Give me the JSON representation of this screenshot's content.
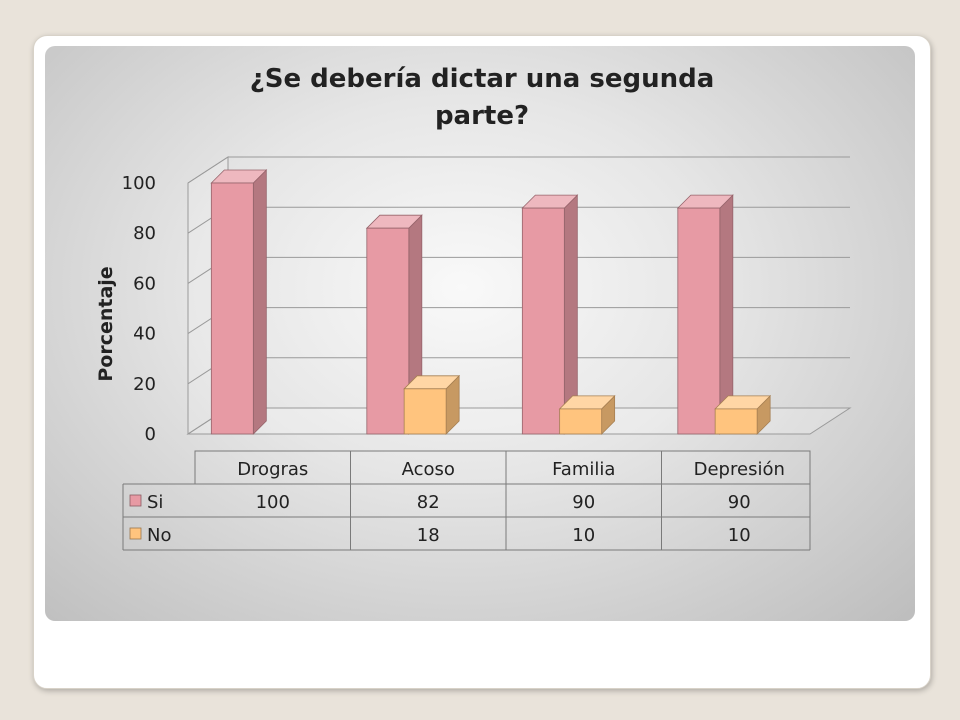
{
  "chart_data": {
    "type": "bar",
    "title": "¿Se debería dictar  una segunda parte?",
    "title_lines": [
      "¿Se debería dictar  una segunda",
      "parte?"
    ],
    "ylabel": "Porcentaje",
    "xlabel": "",
    "categories": [
      "Drogras",
      "Acoso",
      "Familia",
      "Depresión"
    ],
    "series": [
      {
        "name": "Si",
        "values": [
          100,
          82,
          90,
          90
        ],
        "labels": [
          "100",
          "82",
          "90",
          "90"
        ],
        "color": "#e79aa4"
      },
      {
        "name": "No",
        "values": [
          0,
          18,
          10,
          10
        ],
        "labels": [
          "",
          "18",
          "10",
          "10"
        ],
        "color": "#ffc47e"
      }
    ],
    "ylim": [
      0,
      100
    ],
    "yticks": [
      0,
      20,
      40,
      60,
      80,
      100
    ],
    "grid": true,
    "legend": "data-table",
    "style": "3d-column"
  }
}
